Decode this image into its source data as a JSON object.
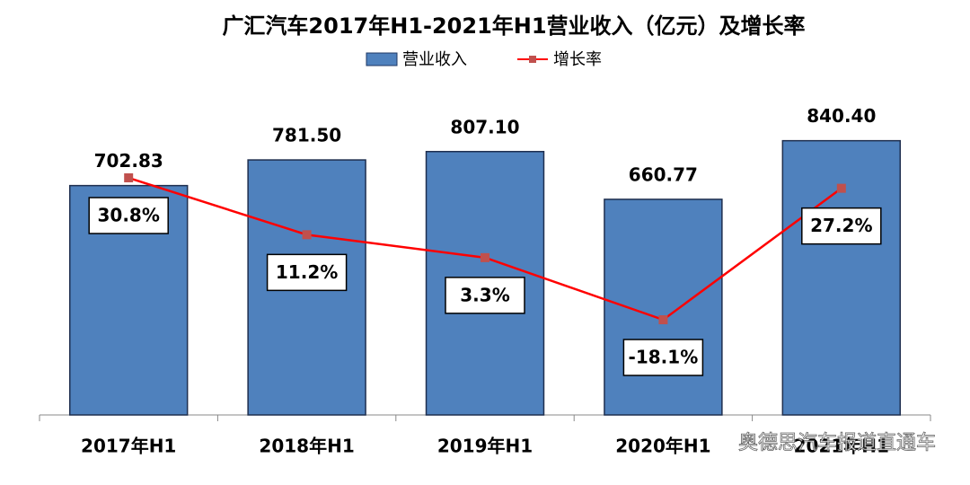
{
  "chart_data": {
    "type": "bar",
    "title": "广汇汽车2017年H1-2021年H1营业收入（亿元）及增长率",
    "categories": [
      "2017年H1",
      "2018年H1",
      "2019年H1",
      "2020年H1",
      "2021年H1"
    ],
    "series": [
      {
        "name": "营业收入",
        "type": "bar",
        "color": "#4f81bd",
        "values": [
          702.83,
          781.5,
          807.1,
          660.77,
          840.4
        ],
        "value_labels": [
          "702.83",
          "781.50",
          "807.10",
          "660.77",
          "840.40"
        ]
      },
      {
        "name": "增长率",
        "type": "line",
        "axis": "y2",
        "color": "#ff0000",
        "marker_color": "#c0504d",
        "values": [
          30.8,
          11.2,
          3.3,
          -18.1,
          27.2
        ],
        "value_labels": [
          "30.8%",
          "11.2%",
          "3.3%",
          "-18.1%",
          "27.2%"
        ]
      }
    ],
    "ylim": [
      0,
      900
    ],
    "y2lim": [
      -50.9,
      50.3
    ],
    "legend": "top",
    "watermark": "奥德思汽车报道直通车"
  }
}
